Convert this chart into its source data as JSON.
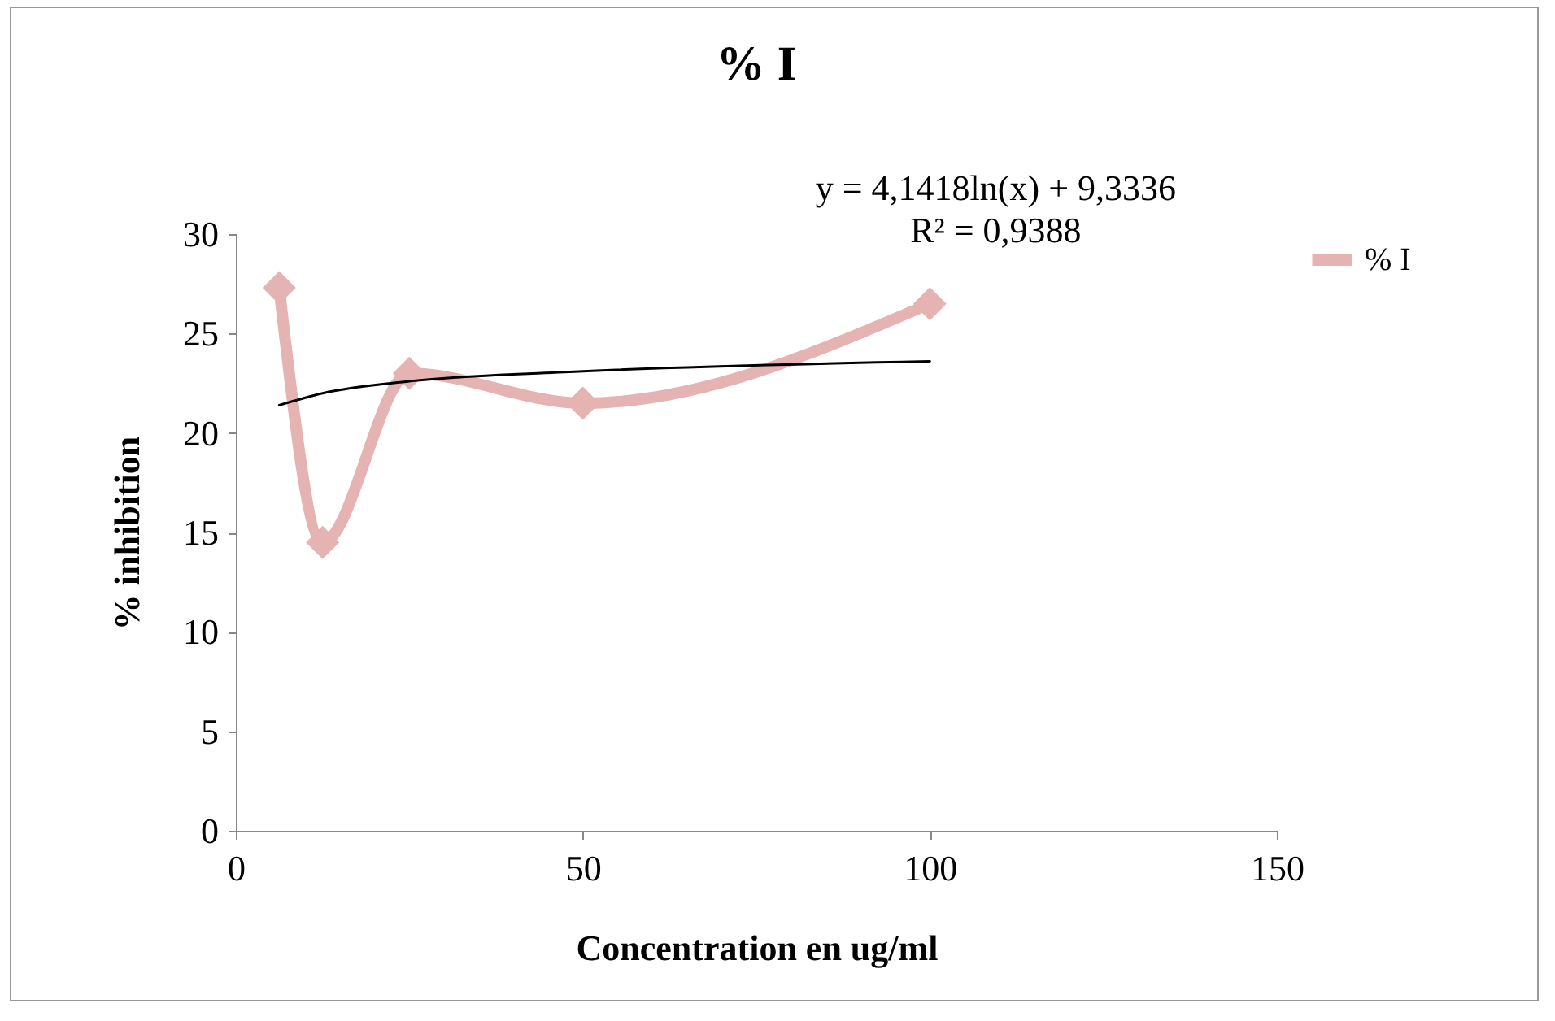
{
  "chart_data": {
    "type": "line",
    "title": "% I",
    "xlabel": "Concentration en ug/ml",
    "ylabel": "% inhibition",
    "x": [
      6.25,
      12.5,
      25,
      50,
      100
    ],
    "series": [
      {
        "name": "% I",
        "color": "#e6b3b3",
        "values": [
          27.3,
          14.5,
          23.0,
          21.5,
          26.5
        ],
        "marker": "diamond"
      },
      {
        "type": "line",
        "color": "#000000",
        "x": [
          6.25,
          12.5,
          25,
          50,
          100
        ],
        "values": [
          21.4,
          22.0,
          22.6,
          23.1,
          23.6
        ],
        "marker": "none"
      }
    ],
    "xlim": [
      0,
      150
    ],
    "xticks": [
      0,
      50,
      100,
      150
    ],
    "ylim": [
      0,
      30
    ],
    "yticks": [
      0,
      5,
      10,
      15,
      20,
      25,
      30
    ],
    "grid": false,
    "legend": "right",
    "annotations": [
      "y = 4,1418ln(x) + 9,3336",
      "R² = 0,9388"
    ]
  }
}
